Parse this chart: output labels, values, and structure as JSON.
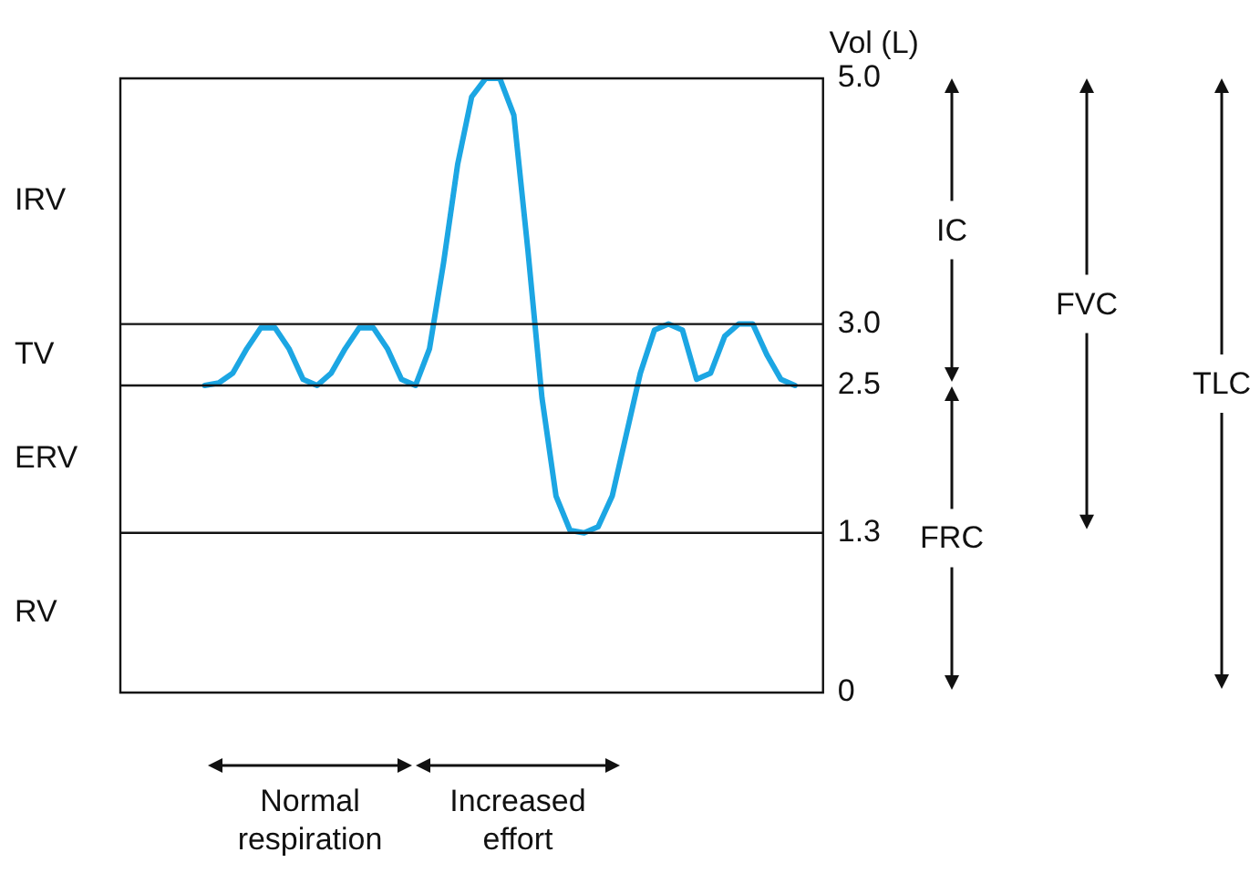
{
  "chart_data": {
    "type": "line",
    "ylabel": "Vol (L)",
    "categories": [
      null,
      null,
      null,
      null,
      null,
      null,
      null,
      null,
      null,
      null,
      null,
      null,
      null,
      null,
      null,
      null,
      null,
      null,
      null,
      null,
      null,
      null,
      null,
      null,
      null,
      null,
      null,
      null,
      null,
      null,
      null,
      null,
      null,
      null,
      null,
      null,
      null,
      null,
      null,
      null,
      null,
      null,
      null,
      null,
      null,
      null,
      null,
      null,
      null,
      null,
      null
    ],
    "series": [
      {
        "color": "#1ca6e3",
        "values": [
          null,
          null,
          null,
          null,
          null,
          null,
          2.5,
          2.52,
          2.6,
          2.8,
          2.97,
          2.97,
          2.8,
          2.55,
          2.5,
          2.6,
          2.8,
          2.97,
          2.97,
          2.8,
          2.55,
          2.5,
          2.8,
          3.5,
          4.3,
          4.85,
          5.0,
          5.0,
          4.7,
          3.6,
          2.4,
          1.6,
          1.32,
          1.3,
          1.35,
          1.6,
          2.1,
          2.6,
          2.95,
          3.0,
          2.95,
          2.55,
          2.6,
          2.9,
          3.0,
          3.0,
          2.75,
          2.55,
          2.5,
          null,
          null
        ]
      }
    ],
    "ylim": [
      0,
      5
    ],
    "yticks": [
      0,
      1.3,
      2.5,
      {
        "value": 3,
        "label": "3.0"
      },
      {
        "value": 5,
        "label": "5.0"
      }
    ],
    "tick_labels": "y",
    "grid": false,
    "legend": false,
    "marker": "none",
    "line_style": "solid",
    "ref_lines": [
      {
        "axis": "y",
        "value": 3
      },
      {
        "axis": "y",
        "value": 2.5
      },
      {
        "axis": "y",
        "value": 1.3
      }
    ],
    "annotations": [
      "IRV",
      "TV",
      "ERV",
      "RV",
      "IC",
      "FVC",
      "TLC",
      "FRC",
      "Normal respiration",
      "Increased effort"
    ]
  }
}
